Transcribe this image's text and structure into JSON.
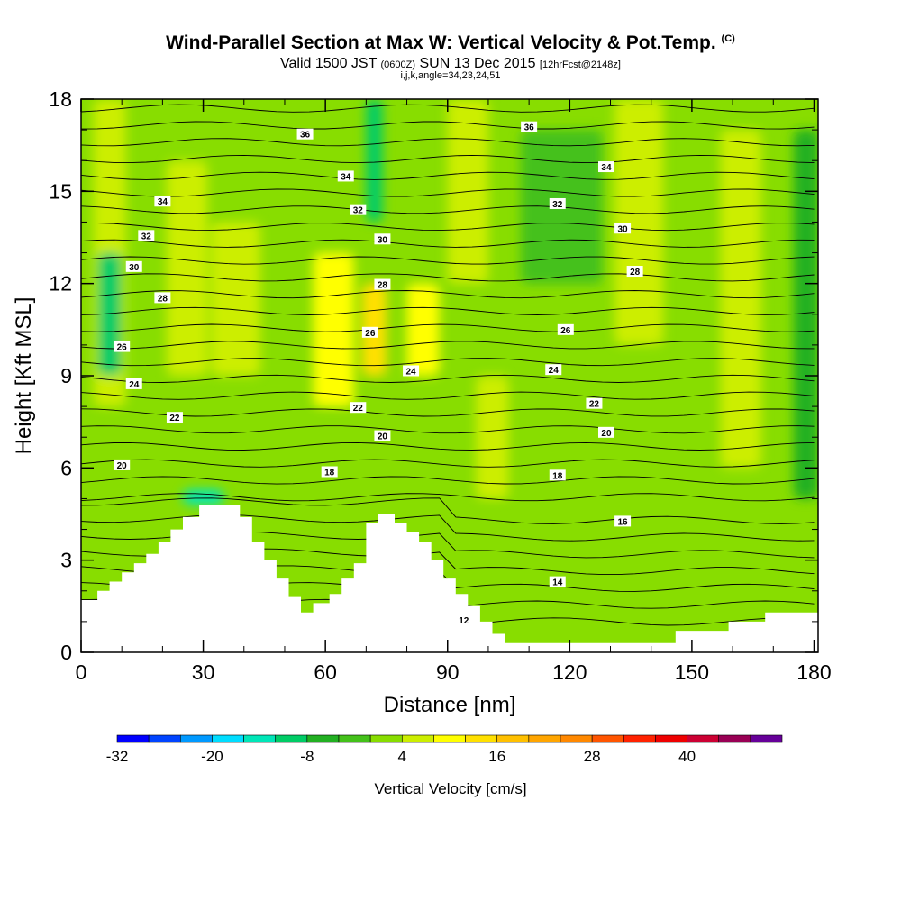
{
  "title": {
    "main": "Wind-Parallel Section at Max W: Vertical Velocity & Pot.Temp.",
    "copyright": "(C)",
    "valid_prefix": "Valid 1500 JST",
    "valid_utc": "(0600Z)",
    "valid_date": "SUN 13 Dec 2015",
    "forecast": "[12hrFcst@2148z]",
    "indices": "i,j,k,angle=34,23,24,51"
  },
  "chart_data": {
    "type": "heatmap",
    "xlabel": "Distance [nm]",
    "ylabel": "Height [Kft MSL]",
    "xlim": [
      0,
      181
    ],
    "ylim": [
      0,
      18
    ],
    "x_ticks": [
      0,
      30,
      60,
      90,
      120,
      150,
      180
    ],
    "x_tick_labels": [
      "0",
      "30",
      "60",
      "90",
      "120",
      "150",
      "180"
    ],
    "y_ticks": [
      0,
      3,
      6,
      9,
      12,
      15,
      18
    ],
    "y_tick_labels": [
      "0",
      "3",
      "6",
      "9",
      "12",
      "15",
      "18"
    ],
    "colorbar": {
      "title": "Vertical Velocity [cm/s]",
      "labels": [
        "-32",
        "-20",
        "-8",
        "4",
        "16",
        "28",
        "40"
      ],
      "label_values": [
        -32,
        -20,
        -8,
        4,
        16,
        28,
        40
      ],
      "bins": [
        {
          "from": -32,
          "to": -28,
          "color": "#0000ff"
        },
        {
          "from": -28,
          "to": -24,
          "color": "#0044ff"
        },
        {
          "from": -24,
          "to": -20,
          "color": "#0099ff"
        },
        {
          "from": -20,
          "to": -16,
          "color": "#00ddff"
        },
        {
          "from": -16,
          "to": -12,
          "color": "#00e6b8"
        },
        {
          "from": -12,
          "to": -8,
          "color": "#00cc66"
        },
        {
          "from": -8,
          "to": -4,
          "color": "#22b022"
        },
        {
          "from": -4,
          "to": 0,
          "color": "#44c11a"
        },
        {
          "from": 0,
          "to": 4,
          "color": "#88dd00"
        },
        {
          "from": 4,
          "to": 8,
          "color": "#ccee00"
        },
        {
          "from": 8,
          "to": 12,
          "color": "#ffff00"
        },
        {
          "from": 12,
          "to": 16,
          "color": "#ffe000"
        },
        {
          "from": 16,
          "to": 20,
          "color": "#ffc000"
        },
        {
          "from": 20,
          "to": 24,
          "color": "#ffa500"
        },
        {
          "from": 24,
          "to": 28,
          "color": "#ff8800"
        },
        {
          "from": 28,
          "to": 32,
          "color": "#ff5500"
        },
        {
          "from": 32,
          "to": 36,
          "color": "#ff2200"
        },
        {
          "from": 36,
          "to": 40,
          "color": "#ee0000"
        },
        {
          "from": 40,
          "to": 44,
          "color": "#cc0033"
        },
        {
          "from": 44,
          "to": 48,
          "color": "#990055"
        },
        {
          "from": 48,
          "to": 52,
          "color": "#660099"
        }
      ]
    },
    "terrain_kft": [
      [
        0,
        1.7
      ],
      [
        4,
        1.7
      ],
      [
        4,
        2.0
      ],
      [
        7,
        2.0
      ],
      [
        7,
        2.3
      ],
      [
        10,
        2.3
      ],
      [
        10,
        2.6
      ],
      [
        13,
        2.6
      ],
      [
        13,
        2.9
      ],
      [
        16,
        2.9
      ],
      [
        16,
        3.2
      ],
      [
        19,
        3.2
      ],
      [
        19,
        3.6
      ],
      [
        22,
        3.6
      ],
      [
        22,
        4.0
      ],
      [
        25,
        4.0
      ],
      [
        25,
        4.4
      ],
      [
        29,
        4.4
      ],
      [
        29,
        4.8
      ],
      [
        39,
        4.8
      ],
      [
        39,
        4.4
      ],
      [
        42,
        4.4
      ],
      [
        42,
        3.6
      ],
      [
        45,
        3.6
      ],
      [
        45,
        3.0
      ],
      [
        48,
        3.0
      ],
      [
        48,
        2.4
      ],
      [
        51,
        2.4
      ],
      [
        51,
        1.8
      ],
      [
        54,
        1.8
      ],
      [
        54,
        1.3
      ],
      [
        57,
        1.3
      ],
      [
        57,
        1.6
      ],
      [
        61,
        1.6
      ],
      [
        61,
        1.9
      ],
      [
        64,
        1.9
      ],
      [
        64,
        2.4
      ],
      [
        67,
        2.4
      ],
      [
        67,
        2.9
      ],
      [
        70,
        2.9
      ],
      [
        70,
        4.2
      ],
      [
        73,
        4.2
      ],
      [
        73,
        4.5
      ],
      [
        77,
        4.5
      ],
      [
        77,
        4.2
      ],
      [
        80,
        4.2
      ],
      [
        80,
        3.9
      ],
      [
        83,
        3.9
      ],
      [
        83,
        3.6
      ],
      [
        86,
        3.6
      ],
      [
        86,
        3.0
      ],
      [
        89,
        3.0
      ],
      [
        89,
        2.4
      ],
      [
        92,
        2.4
      ],
      [
        92,
        1.9
      ],
      [
        95,
        1.9
      ],
      [
        95,
        1.5
      ],
      [
        98,
        1.5
      ],
      [
        98,
        1.0
      ],
      [
        101,
        1.0
      ],
      [
        101,
        0.6
      ],
      [
        104,
        0.6
      ],
      [
        104,
        0.3
      ],
      [
        146,
        0.3
      ],
      [
        146,
        0.7
      ],
      [
        159,
        0.7
      ],
      [
        159,
        1.0
      ],
      [
        168,
        1.0
      ],
      [
        168,
        1.3
      ],
      [
        181,
        1.3
      ]
    ],
    "theta_contours": [
      {
        "label": "12",
        "base_kft": 2.0,
        "slope": -0.01,
        "label_x": 94
      },
      {
        "label": "14",
        "base_kft": 3.0,
        "slope": -0.006,
        "label_x": 117
      },
      {
        "label": "16",
        "base_kft": 4.8,
        "slope": -0.004,
        "label_x": 133
      },
      {
        "label": "18",
        "base_kft": 6.0,
        "slope": -0.002,
        "label_x": 61
      },
      {
        "label": "18",
        "base_kft": 6.0,
        "slope": -0.002,
        "label_x": 117
      },
      {
        "label": "20",
        "base_kft": 6.0,
        "slope": 0.01,
        "label_x": 10
      },
      {
        "label": "20",
        "base_kft": 6.9,
        "slope": 0.002,
        "label_x": 74
      },
      {
        "label": "20",
        "base_kft": 6.9,
        "slope": 0.002,
        "label_x": 129
      },
      {
        "label": "22",
        "base_kft": 7.6,
        "slope": 0.002,
        "label_x": 23
      },
      {
        "label": "22",
        "base_kft": 7.9,
        "slope": 0.001,
        "label_x": 68
      },
      {
        "label": "22",
        "base_kft": 8.1,
        "slope": 0.0,
        "label_x": 126
      },
      {
        "label": "24",
        "base_kft": 8.7,
        "slope": 0.003,
        "label_x": 13
      },
      {
        "label": "24",
        "base_kft": 9.0,
        "slope": 0.002,
        "label_x": 81
      },
      {
        "label": "24",
        "base_kft": 9.2,
        "slope": 0.0,
        "label_x": 116
      },
      {
        "label": "26",
        "base_kft": 9.9,
        "slope": 0.005,
        "label_x": 10
      },
      {
        "label": "26",
        "base_kft": 10.2,
        "slope": 0.003,
        "label_x": 71
      },
      {
        "label": "26",
        "base_kft": 10.5,
        "slope": 0.0,
        "label_x": 119
      },
      {
        "label": "28",
        "base_kft": 11.5,
        "slope": 0.002,
        "label_x": 20
      },
      {
        "label": "28",
        "base_kft": 11.9,
        "slope": 0.001,
        "label_x": 74
      },
      {
        "label": "28",
        "base_kft": 12.4,
        "slope": 0.0,
        "label_x": 136
      },
      {
        "label": "30",
        "base_kft": 12.5,
        "slope": 0.004,
        "label_x": 13
      },
      {
        "label": "30",
        "base_kft": 13.3,
        "slope": 0.002,
        "label_x": 74
      },
      {
        "label": "30",
        "base_kft": 13.8,
        "slope": 0.0,
        "label_x": 133
      },
      {
        "label": "32",
        "base_kft": 13.5,
        "slope": 0.004,
        "label_x": 16
      },
      {
        "label": "32",
        "base_kft": 14.2,
        "slope": 0.003,
        "label_x": 68
      },
      {
        "label": "32",
        "base_kft": 14.6,
        "slope": 0.0,
        "label_x": 117
      },
      {
        "label": "34",
        "base_kft": 14.6,
        "slope": 0.004,
        "label_x": 20
      },
      {
        "label": "34",
        "base_kft": 15.3,
        "slope": 0.003,
        "label_x": 65
      },
      {
        "label": "34",
        "base_kft": 15.8,
        "slope": 0.0,
        "label_x": 129
      },
      {
        "label": "36",
        "base_kft": 16.7,
        "slope": 0.003,
        "label_x": 55
      },
      {
        "label": "36",
        "base_kft": 17.1,
        "slope": 0.0,
        "label_x": 110
      }
    ],
    "updraft_bands": [
      {
        "x": 7,
        "half_width": 4,
        "ymin": 8,
        "ymax": 18,
        "value": 6
      },
      {
        "x": 26,
        "half_width": 5,
        "ymin": 9,
        "ymax": 16,
        "value": 5
      },
      {
        "x": 38,
        "half_width": 6,
        "ymin": 9,
        "ymax": 14,
        "value": 7
      },
      {
        "x": 62,
        "half_width": 5,
        "ymin": 8,
        "ymax": 13,
        "value": 10
      },
      {
        "x": 72,
        "half_width": 3,
        "ymin": 9,
        "ymax": 12,
        "value": 13
      },
      {
        "x": 84,
        "half_width": 4,
        "ymin": 9,
        "ymax": 12,
        "value": 10
      },
      {
        "x": 95,
        "half_width": 5,
        "ymin": 12,
        "ymax": 18,
        "value": 6
      },
      {
        "x": 101,
        "half_width": 4,
        "ymin": 5,
        "ymax": 9,
        "value": 5
      },
      {
        "x": 137,
        "half_width": 6,
        "ymin": 10,
        "ymax": 18,
        "value": 6
      },
      {
        "x": 162,
        "half_width": 5,
        "ymin": 6,
        "ymax": 17,
        "value": 7
      }
    ],
    "downdraft_bands": [
      {
        "x": 7,
        "half_width": 3,
        "ymin": 9,
        "ymax": 13,
        "value": -12
      },
      {
        "x": 72,
        "half_width": 2,
        "ymin": 14,
        "ymax": 18,
        "value": -11
      },
      {
        "x": 118,
        "half_width": 10,
        "ymin": 12,
        "ymax": 17,
        "value": -4
      },
      {
        "x": 178,
        "half_width": 3,
        "ymin": 5,
        "ymax": 17,
        "value": -5
      },
      {
        "x": 30,
        "half_width": 5,
        "ymin": 4.8,
        "ymax": 5.3,
        "value": -14
      }
    ]
  }
}
